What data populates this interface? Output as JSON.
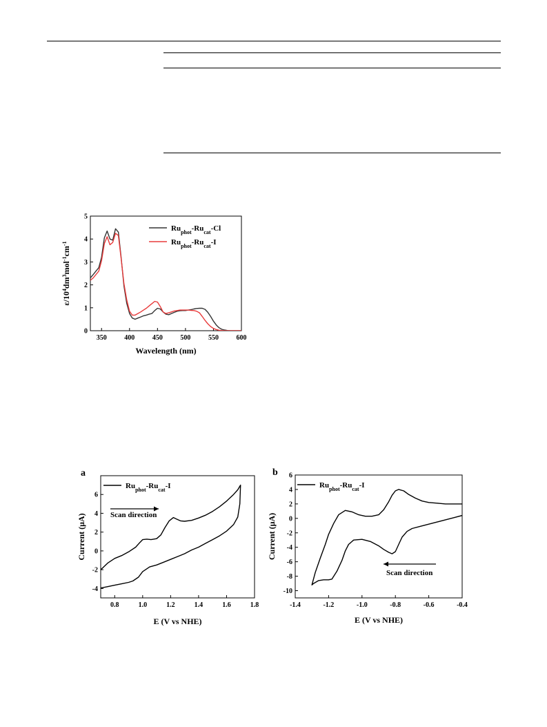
{
  "chart_data": [
    {
      "type": "line",
      "panel": "",
      "xlabel": "Wavelength (nm)",
      "ylabel": "ε/10⁴dm³mol⁻¹cm⁻¹",
      "xlim": [
        330,
        600
      ],
      "ylim": [
        0,
        5
      ],
      "xticks": [
        350,
        400,
        450,
        500,
        550,
        600
      ],
      "yticks": [
        0,
        1,
        2,
        3,
        4,
        5
      ],
      "legend_position": "top-right",
      "series": [
        {
          "name": "Ruphot-Rucat-Cl",
          "legend_parts": [
            [
              "Ru",
              ""
            ],
            [
              "phot",
              "sub"
            ],
            [
              "-Ru",
              ""
            ],
            [
              "cat",
              "sub"
            ],
            [
              "-Cl",
              ""
            ]
          ],
          "color": "#333333",
          "x": [
            330,
            335,
            340,
            345,
            350,
            355,
            360,
            365,
            370,
            375,
            380,
            385,
            390,
            395,
            400,
            405,
            410,
            415,
            420,
            425,
            430,
            435,
            440,
            445,
            450,
            455,
            460,
            465,
            470,
            475,
            480,
            485,
            490,
            495,
            500,
            505,
            510,
            515,
            520,
            525,
            530,
            535,
            540,
            545,
            550,
            555,
            560,
            565,
            570,
            575,
            580,
            590,
            600
          ],
          "y": [
            2.3,
            2.45,
            2.6,
            2.75,
            3.2,
            4.05,
            4.35,
            4.0,
            3.95,
            4.45,
            4.3,
            3.2,
            1.95,
            1.2,
            0.75,
            0.55,
            0.5,
            0.55,
            0.6,
            0.65,
            0.68,
            0.72,
            0.75,
            0.88,
            0.98,
            0.95,
            0.82,
            0.72,
            0.7,
            0.75,
            0.8,
            0.85,
            0.87,
            0.88,
            0.88,
            0.9,
            0.92,
            0.95,
            0.97,
            0.98,
            0.98,
            0.93,
            0.8,
            0.62,
            0.42,
            0.25,
            0.13,
            0.06,
            0.03,
            0.01,
            0.0,
            0.0,
            0.0
          ]
        },
        {
          "name": "Ruphot-Rucat-I",
          "legend_parts": [
            [
              "Ru",
              ""
            ],
            [
              "phot",
              "sub"
            ],
            [
              "-Ru",
              ""
            ],
            [
              "cat",
              "sub"
            ],
            [
              "-I",
              ""
            ]
          ],
          "color": "#e83a3a",
          "x": [
            330,
            335,
            340,
            345,
            350,
            355,
            360,
            365,
            370,
            375,
            380,
            385,
            390,
            395,
            400,
            405,
            410,
            415,
            420,
            425,
            430,
            435,
            440,
            445,
            450,
            455,
            460,
            465,
            470,
            475,
            480,
            485,
            490,
            495,
            500,
            505,
            510,
            515,
            520,
            525,
            530,
            535,
            540,
            545,
            550,
            555,
            560,
            565,
            570,
            575,
            580,
            590,
            600
          ],
          "y": [
            2.2,
            2.3,
            2.45,
            2.6,
            3.05,
            3.8,
            4.1,
            3.75,
            3.85,
            4.25,
            4.15,
            3.15,
            2.05,
            1.35,
            0.85,
            0.68,
            0.68,
            0.75,
            0.82,
            0.9,
            0.98,
            1.08,
            1.18,
            1.28,
            1.25,
            1.05,
            0.82,
            0.75,
            0.78,
            0.82,
            0.86,
            0.88,
            0.9,
            0.9,
            0.9,
            0.9,
            0.89,
            0.88,
            0.85,
            0.78,
            0.62,
            0.45,
            0.3,
            0.18,
            0.1,
            0.05,
            0.02,
            0.01,
            0.0,
            0.0,
            0.0,
            0.0,
            0.0
          ]
        }
      ]
    },
    {
      "type": "line",
      "panel": "a",
      "xlabel": "E (V vs NHE)",
      "ylabel": "Current (μA)",
      "xlim": [
        0.7,
        1.8
      ],
      "ylim": [
        -5,
        8
      ],
      "xticks": [
        0.8,
        1.0,
        1.2,
        1.4,
        1.6,
        1.8
      ],
      "xtick_labels": [
        "0.8",
        "1.0",
        "1.2",
        "1.4",
        "1.6",
        "1.8"
      ],
      "yticks": [
        -4,
        -2,
        0,
        2,
        4,
        6
      ],
      "legend_position": "top-left",
      "annotation": "Scan direction",
      "arrow_direction": "right",
      "series": [
        {
          "name": "Ruphot-Rucat-I",
          "legend_parts": [
            [
              "Ru",
              ""
            ],
            [
              "phot",
              "sub"
            ],
            [
              "-Ru",
              ""
            ],
            [
              "cat",
              "sub"
            ],
            [
              "-I",
              ""
            ]
          ],
          "color": "#000000",
          "x": [
            0.7,
            0.75,
            0.8,
            0.85,
            0.9,
            0.95,
            0.98,
            1.0,
            1.03,
            1.06,
            1.1,
            1.13,
            1.16,
            1.19,
            1.22,
            1.24,
            1.27,
            1.3,
            1.35,
            1.4,
            1.45,
            1.5,
            1.55,
            1.6,
            1.65,
            1.68,
            1.7,
            1.695,
            1.68,
            1.65,
            1.6,
            1.55,
            1.5,
            1.45,
            1.4,
            1.35,
            1.3,
            1.25,
            1.2,
            1.15,
            1.1,
            1.05,
            1.0,
            0.97,
            0.93,
            0.9,
            0.85,
            0.8,
            0.75,
            0.7
          ],
          "y": [
            -2.0,
            -1.3,
            -0.8,
            -0.5,
            -0.1,
            0.4,
            0.9,
            1.2,
            1.25,
            1.2,
            1.3,
            1.7,
            2.5,
            3.2,
            3.55,
            3.4,
            3.2,
            3.15,
            3.25,
            3.5,
            3.8,
            4.2,
            4.7,
            5.3,
            6.0,
            6.5,
            7.0,
            5.0,
            3.6,
            2.8,
            2.1,
            1.6,
            1.2,
            0.8,
            0.4,
            0.1,
            -0.3,
            -0.6,
            -0.9,
            -1.2,
            -1.5,
            -1.7,
            -2.2,
            -2.8,
            -3.2,
            -3.35,
            -3.5,
            -3.65,
            -3.8,
            -3.95
          ]
        }
      ]
    },
    {
      "type": "line",
      "panel": "b",
      "xlabel": "E (V vs NHE)",
      "ylabel": "Current (μA)",
      "xlim": [
        -1.4,
        -0.4
      ],
      "ylim": [
        -11,
        6
      ],
      "xticks": [
        -1.4,
        -1.2,
        -1.0,
        -0.8,
        -0.6,
        -0.4
      ],
      "xtick_labels": [
        "-1.4",
        "-1.2",
        "-1.0",
        "-0.8",
        "-0.6",
        "-0.4"
      ],
      "yticks": [
        -10,
        -8,
        -6,
        -4,
        -2,
        0,
        2,
        4,
        6
      ],
      "legend_position": "top-left",
      "annotation": "Scan direction",
      "arrow_direction": "left",
      "series": [
        {
          "name": "Ruphot-Rucat-I",
          "legend_parts": [
            [
              "Ru",
              ""
            ],
            [
              "phot",
              "sub"
            ],
            [
              "-Ru",
              ""
            ],
            [
              "cat",
              "sub"
            ],
            [
              "-I",
              ""
            ]
          ],
          "color": "#000000",
          "x": [
            -0.4,
            -0.45,
            -0.5,
            -0.55,
            -0.6,
            -0.65,
            -0.7,
            -0.73,
            -0.76,
            -0.78,
            -0.8,
            -0.82,
            -0.84,
            -0.87,
            -0.9,
            -0.95,
            -1.0,
            -1.05,
            -1.08,
            -1.1,
            -1.12,
            -1.15,
            -1.18,
            -1.2,
            -1.23,
            -1.26,
            -1.29,
            -1.3,
            -1.28,
            -1.25,
            -1.22,
            -1.2,
            -1.17,
            -1.14,
            -1.1,
            -1.06,
            -1.02,
            -0.98,
            -0.94,
            -0.9,
            -0.87,
            -0.84,
            -0.82,
            -0.8,
            -0.78,
            -0.75,
            -0.72,
            -0.68,
            -0.64,
            -0.6,
            -0.55,
            -0.5,
            -0.45,
            -0.4
          ],
          "y": [
            0.4,
            0.1,
            -0.2,
            -0.5,
            -0.8,
            -1.1,
            -1.4,
            -1.8,
            -2.6,
            -3.6,
            -4.6,
            -4.9,
            -4.7,
            -4.3,
            -3.8,
            -3.2,
            -2.9,
            -3.0,
            -3.6,
            -4.5,
            -5.8,
            -7.3,
            -8.4,
            -8.5,
            -8.5,
            -8.6,
            -9.0,
            -9.2,
            -7.5,
            -5.5,
            -3.6,
            -2.2,
            -0.7,
            0.5,
            1.1,
            0.9,
            0.5,
            0.3,
            0.3,
            0.5,
            1.2,
            2.3,
            3.2,
            3.8,
            4.0,
            3.8,
            3.3,
            2.8,
            2.4,
            2.2,
            2.1,
            2.0,
            2.0,
            2.0
          ]
        }
      ]
    }
  ]
}
